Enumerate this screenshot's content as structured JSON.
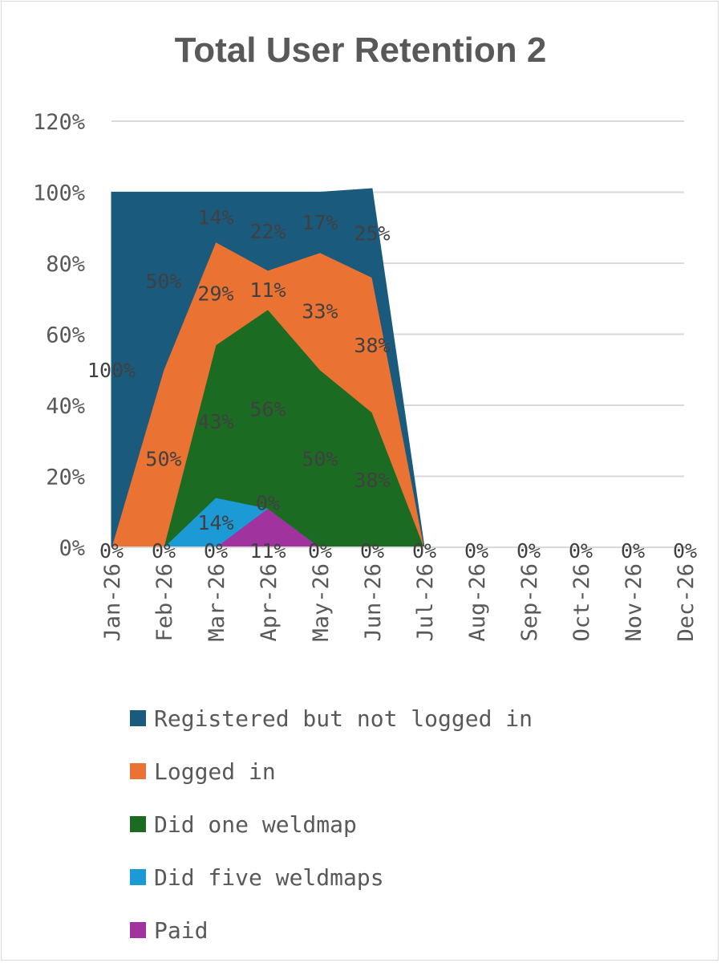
{
  "chart_data": {
    "type": "area",
    "stacked": true,
    "title": "Total User Retention 2",
    "categories": [
      "Jan-26",
      "Feb-26",
      "Mar-26",
      "Apr-26",
      "May-26",
      "Jun-26",
      "Jul-26",
      "Aug-26",
      "Sep-26",
      "Oct-26",
      "Nov-26",
      "Dec-26"
    ],
    "ylim": [
      0,
      1.2
    ],
    "yticks": [
      "0%",
      "20%",
      "40%",
      "60%",
      "80%",
      "100%",
      "120%"
    ],
    "grid": true,
    "legend_position": "bottom",
    "series": [
      {
        "name": "Paid",
        "color": "#a1339f",
        "values": [
          0,
          0,
          0,
          0.11,
          0,
          0,
          0,
          0,
          0,
          0,
          0,
          0
        ],
        "labels": [
          "0%",
          "0%",
          "0%",
          "11%",
          "0%",
          "0%",
          "0%",
          "0%",
          "0%",
          "0%",
          "0%",
          "0%"
        ]
      },
      {
        "name": "Did five weldmaps",
        "color": "#1c9ad6",
        "values": [
          0,
          0,
          0.14,
          0,
          0,
          0,
          0,
          0,
          0,
          0,
          0,
          0
        ],
        "labels": [
          "",
          "",
          "14%",
          "0%",
          "",
          "",
          "",
          "",
          "",
          "",
          "",
          ""
        ]
      },
      {
        "name": "Did one weldmap",
        "color": "#1c6b23",
        "values": [
          0,
          0,
          0.43,
          0.56,
          0.5,
          0.38,
          0,
          0,
          0,
          0,
          0,
          0
        ],
        "labels": [
          "",
          "",
          "43%",
          "56%",
          "50%",
          "38%",
          "",
          "",
          "",
          "",
          "",
          ""
        ]
      },
      {
        "name": "Logged in",
        "color": "#ea7333",
        "values": [
          0,
          0.5,
          0.29,
          0.11,
          0.33,
          0.38,
          0,
          0,
          0,
          0,
          0,
          0
        ],
        "labels": [
          "",
          "50%",
          "29%",
          "11%",
          "33%",
          "38%",
          "",
          "",
          "",
          "",
          "",
          ""
        ]
      },
      {
        "name": "Registered but not logged in",
        "color": "#1a5a7d",
        "values": [
          1.0,
          0.5,
          0.14,
          0.22,
          0.17,
          0.25,
          0,
          0,
          0,
          0,
          0,
          0
        ],
        "labels": [
          "100%",
          "50%",
          "14%",
          "22%",
          "17%",
          "25%",
          "",
          "",
          "",
          "",
          "",
          ""
        ]
      }
    ],
    "legend_order": [
      "Registered but not logged in",
      "Logged in",
      "Did one weldmap",
      "Did five weldmaps",
      "Paid"
    ]
  }
}
